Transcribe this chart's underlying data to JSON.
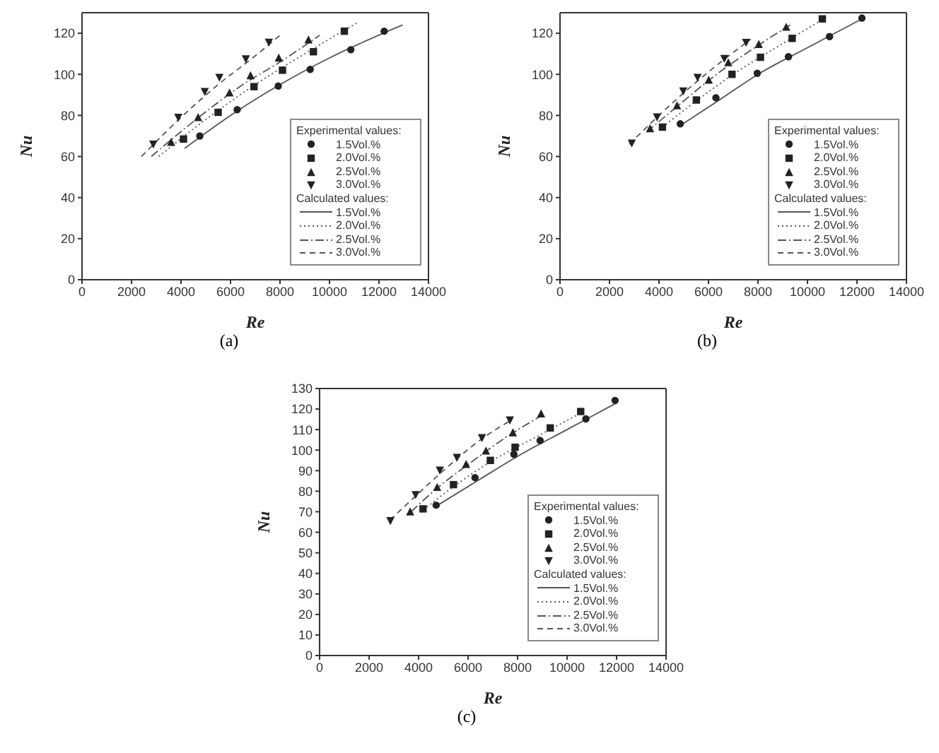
{
  "chart_data": [
    {
      "type": "scatter",
      "subtitle": "(a)",
      "xlabel": "Re",
      "ylabel": "Nu",
      "legend_title": "Experimental values:",
      "annotations": [
        "Calculated values:"
      ],
      "xlim": [
        0,
        14000
      ],
      "xticks": [
        0,
        2000,
        4000,
        6000,
        8000,
        10000,
        12000,
        14000
      ],
      "ylim": [
        0,
        130
      ],
      "yticks": [
        0,
        20,
        40,
        60,
        80,
        100,
        120
      ],
      "legend": "bottom right",
      "series": [
        {
          "name": "1.5Vol.%",
          "color": "#222222",
          "marker": "circle",
          "x": [
            4760,
            6270,
            7930,
            9220,
            10860,
            12210
          ],
          "values": [
            70,
            82.8,
            94.3,
            102.4,
            112,
            121
          ]
        },
        {
          "name": "2.0Vol.%",
          "color": "#222222",
          "marker": "square",
          "x": [
            4100,
            5500,
            6950,
            8100,
            9350,
            10600
          ],
          "values": [
            68.5,
            81.5,
            94,
            102,
            111,
            121
          ]
        },
        {
          "name": "2.5Vol.%",
          "color": "#222222",
          "marker": "triangle",
          "x": [
            3600,
            4690,
            5960,
            6810,
            7950,
            9150
          ],
          "values": [
            67,
            79,
            91,
            99.4,
            108,
            116.8
          ]
        },
        {
          "name": "3.0Vol.%",
          "color": "#222222",
          "marker": "triangle_down",
          "x": [
            2880,
            3890,
            4960,
            5550,
            6620,
            7550
          ],
          "values": [
            66,
            79,
            91.6,
            98.5,
            107.5,
            115.6
          ]
        },
        {
          "name": "1.5Vol.%",
          "type": "line",
          "line_style": "solid",
          "marker": "none",
          "color": "#555555",
          "x": [
            4150,
            6000,
            8000,
            10000,
            12950
          ],
          "values": [
            64,
            80,
            95,
            108,
            124
          ]
        },
        {
          "name": "2.0Vol.%",
          "type": "line",
          "line_style": "dotted",
          "marker": "none",
          "color": "#555555",
          "x": [
            3100,
            5000,
            7000,
            9000,
            11100
          ],
          "values": [
            60,
            78,
            95,
            110,
            125
          ]
        },
        {
          "name": "2.5Vol.%",
          "type": "line",
          "line_style": "dashdot",
          "marker": "none",
          "color": "#555555",
          "x": [
            2800,
            4500,
            6500,
            8000,
            9600
          ],
          "values": [
            60,
            77,
            95,
            106,
            119
          ]
        },
        {
          "name": "3.0Vol.%",
          "type": "line",
          "line_style": "dashed",
          "marker": "none",
          "color": "#555555",
          "x": [
            2400,
            4000,
            5500,
            7000,
            8000
          ],
          "values": [
            60,
            79,
            95,
            109,
            119
          ]
        }
      ]
    },
    {
      "type": "scatter",
      "subtitle": "(b)",
      "xlabel": "Re",
      "ylabel": "Nu",
      "legend_title": "Experimental values:",
      "annotations": [
        "Calculated values:"
      ],
      "xlim": [
        0,
        14000
      ],
      "xticks": [
        0,
        2000,
        4000,
        6000,
        8000,
        10000,
        12000,
        14000
      ],
      "ylim": [
        0,
        130
      ],
      "yticks": [
        0,
        20,
        40,
        60,
        80,
        100,
        120
      ],
      "legend": "bottom right",
      "series": [
        {
          "name": "1.5Vol.%",
          "color": "#222222",
          "marker": "circle",
          "x": [
            4860,
            6300,
            7970,
            9230,
            10890,
            12200
          ],
          "values": [
            75.9,
            88.6,
            100.5,
            108.6,
            118.4,
            127.4
          ]
        },
        {
          "name": "2.0Vol.%",
          "color": "#222222",
          "marker": "square",
          "x": [
            4140,
            5510,
            6950,
            8100,
            9380,
            10600
          ],
          "values": [
            74.3,
            87.5,
            100,
            108.3,
            117.5,
            127
          ]
        },
        {
          "name": "2.5Vol.%",
          "color": "#222222",
          "marker": "triangle",
          "x": [
            3640,
            4730,
            6010,
            6800,
            8030,
            9140
          ],
          "values": [
            73.6,
            84.8,
            97.2,
            105.7,
            114.6,
            123
          ]
        },
        {
          "name": "3.0Vol.%",
          "color": "#222222",
          "marker": "triangle_down",
          "x": [
            2900,
            3920,
            4980,
            5560,
            6640,
            7520
          ],
          "values": [
            66.5,
            79.2,
            91.8,
            98.5,
            107.7,
            115.5
          ]
        },
        {
          "name": "1.5Vol.%",
          "type": "line",
          "line_style": "solid",
          "marker": "none",
          "color": "#555555",
          "x": [
            4850,
            6500,
            8000,
            10000,
            12200
          ],
          "values": [
            75,
            88,
            100,
            113,
            127
          ]
        },
        {
          "name": "2.0Vol.%",
          "type": "line",
          "line_style": "dotted",
          "marker": "none",
          "color": "#555555",
          "x": [
            4000,
            5500,
            7000,
            9000,
            10800
          ],
          "values": [
            73,
            87,
            100,
            115,
            128
          ]
        },
        {
          "name": "2.5Vol.%",
          "type": "line",
          "line_style": "dashdot",
          "marker": "none",
          "color": "#555555",
          "x": [
            3500,
            4800,
            6000,
            7500,
            9300
          ],
          "values": [
            72,
            85,
            97,
            110,
            124
          ]
        },
        {
          "name": "3.0Vol.%",
          "type": "line",
          "line_style": "dashed",
          "marker": "none",
          "color": "#555555",
          "x": [
            2800,
            4000,
            5000,
            6500,
            7700
          ],
          "values": [
            66,
            80,
            91,
            106,
            117
          ]
        }
      ]
    },
    {
      "type": "scatter",
      "subtitle": "(c)",
      "xlabel": "Re",
      "ylabel": "Nu",
      "legend_title": "Experimental values:",
      "annotations": [
        "Calculated values:"
      ],
      "xlim": [
        0,
        14000
      ],
      "xticks": [
        0,
        2000,
        4000,
        6000,
        8000,
        10000,
        12000,
        14000
      ],
      "ylim": [
        0,
        130
      ],
      "yticks": [
        0,
        10,
        20,
        30,
        40,
        50,
        60,
        70,
        80,
        90,
        100,
        110,
        120,
        130
      ],
      "legend": "bottom right",
      "series": [
        {
          "name": "1.5Vol.%",
          "color": "#222222",
          "marker": "circle",
          "x": [
            4710,
            6280,
            7850,
            8910,
            10760,
            11940
          ],
          "values": [
            73.2,
            86.6,
            98,
            104.7,
            115.2,
            124.2
          ]
        },
        {
          "name": "2.0Vol.%",
          "color": "#222222",
          "marker": "square",
          "x": [
            4180,
            5410,
            6900,
            7900,
            9320,
            10550
          ],
          "values": [
            71.4,
            83.2,
            95,
            101.4,
            110.8,
            118.8
          ]
        },
        {
          "name": "2.5Vol.%",
          "color": "#222222",
          "marker": "triangle",
          "x": [
            3660,
            4750,
            5920,
            6720,
            7810,
            8950
          ],
          "values": [
            70,
            81.9,
            93.1,
            99.6,
            108.5,
            117.7
          ]
        },
        {
          "name": "3.0Vol.%",
          "color": "#222222",
          "marker": "triangle_down",
          "x": [
            2860,
            3880,
            4860,
            5550,
            6560,
            7690
          ],
          "values": [
            65.6,
            78.3,
            90.2,
            96.4,
            106,
            114.6
          ]
        },
        {
          "name": "1.5Vol.%",
          "type": "line",
          "line_style": "solid",
          "marker": "none",
          "color": "#555555",
          "x": [
            4750,
            6500,
            8000,
            10000,
            12000
          ],
          "values": [
            73,
            86,
            97,
            110,
            123
          ]
        },
        {
          "name": "2.0Vol.%",
          "type": "line",
          "line_style": "dotted",
          "marker": "none",
          "color": "#555555",
          "x": [
            4200,
            5500,
            7000,
            9000,
            10700
          ],
          "values": [
            71,
            83,
            95,
            108,
            119
          ]
        },
        {
          "name": "2.5Vol.%",
          "type": "line",
          "line_style": "dashdot",
          "marker": "none",
          "color": "#555555",
          "x": [
            3700,
            4800,
            6000,
            7500,
            9000
          ],
          "values": [
            70,
            82,
            93,
            106,
            117
          ]
        },
        {
          "name": "3.0Vol.%",
          "type": "line",
          "line_style": "dashed",
          "marker": "none",
          "color": "#555555",
          "x": [
            2850,
            4000,
            5000,
            6500,
            7800
          ],
          "values": [
            66,
            79,
            90,
            105,
            115
          ]
        }
      ]
    }
  ]
}
